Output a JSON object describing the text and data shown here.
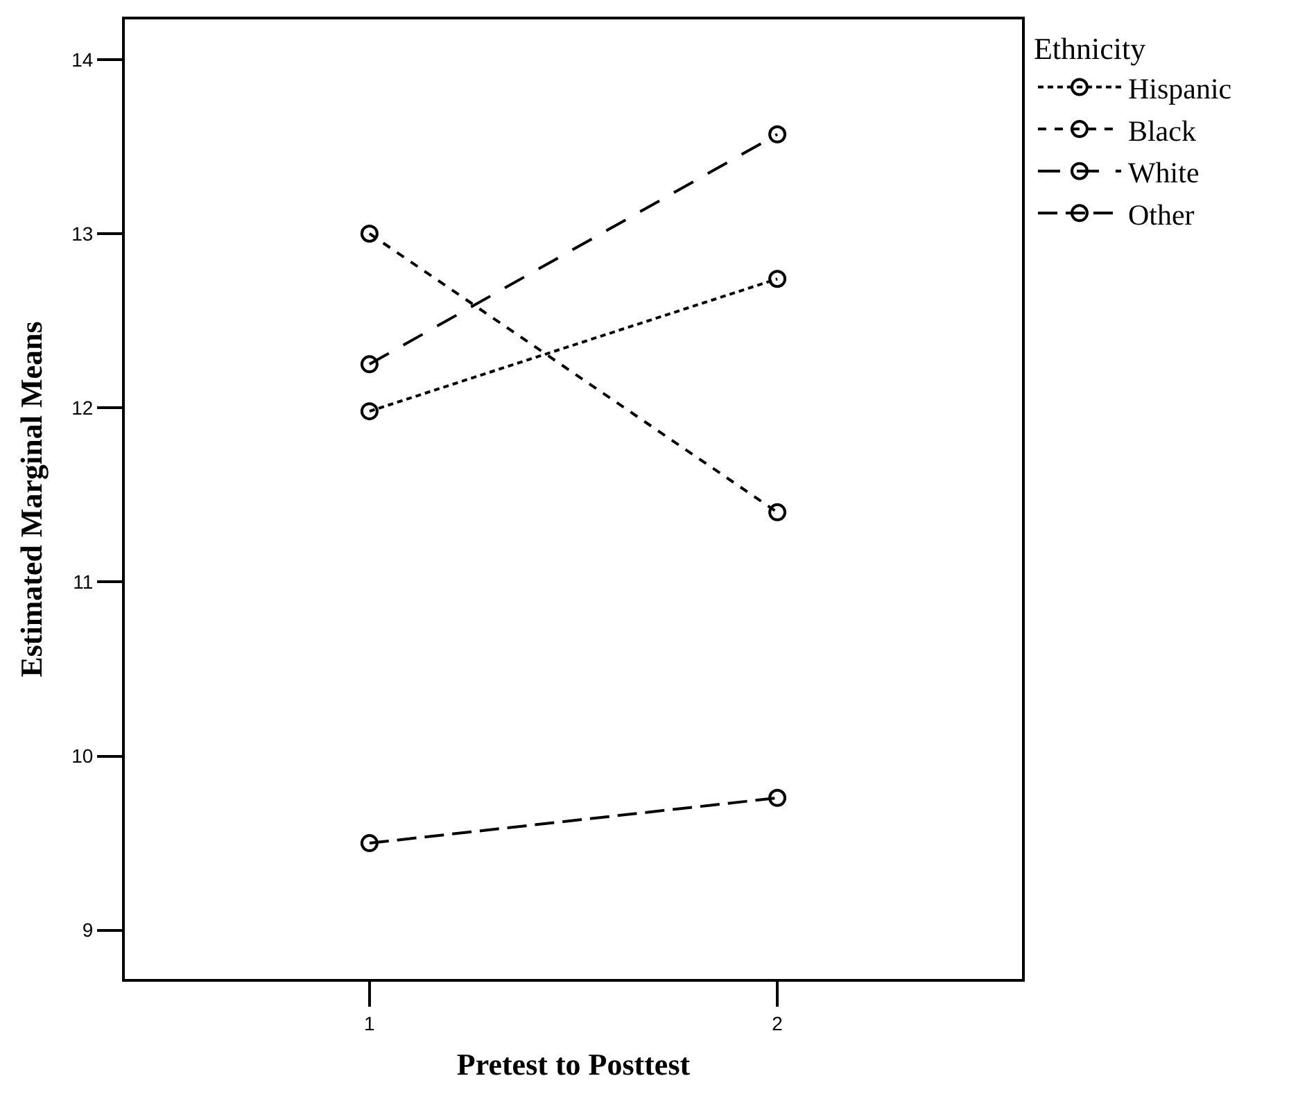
{
  "chart_data": {
    "type": "line",
    "xlabel": "Pretest to Posttest",
    "ylabel": "Estimated Marginal Means",
    "legend_title": "Ethnicity",
    "x": [
      1,
      2
    ],
    "xlim": [
      0.4,
      2.6
    ],
    "xticks": [
      1,
      2
    ],
    "ylim": [
      8.72,
      14.23
    ],
    "yticks": [
      9,
      10,
      11,
      12,
      13,
      14
    ],
    "legend": "top right",
    "marker": "circle",
    "series": [
      {
        "name": "Hispanic",
        "color": "#000000",
        "line_style": "dotted",
        "values": [
          11.98,
          12.74
        ]
      },
      {
        "name": "Black",
        "color": "#000000",
        "line_style": "dashed",
        "values": [
          13.0,
          11.4
        ]
      },
      {
        "name": "White",
        "color": "#000000",
        "line_style": "dashed",
        "values": [
          12.25,
          13.57
        ]
      },
      {
        "name": "Other",
        "color": "#000000",
        "line_style": "dashed",
        "values": [
          9.5,
          9.76
        ]
      }
    ]
  }
}
